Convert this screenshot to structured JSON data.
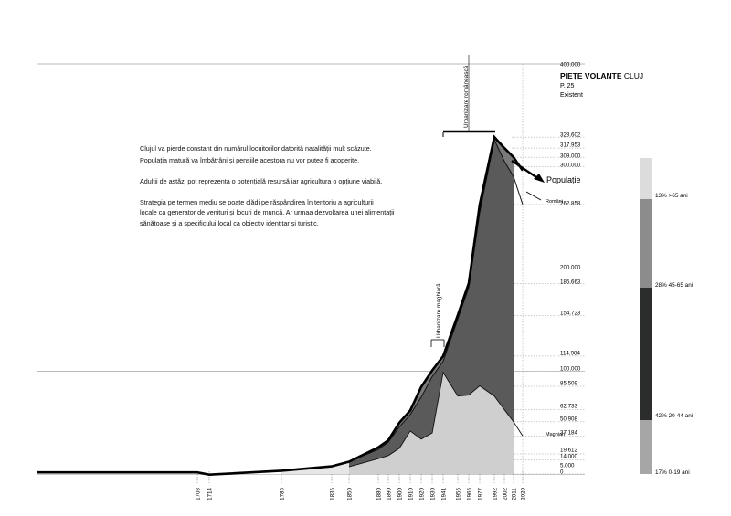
{
  "header": {
    "title_bold": "PIEȚE VOLANTE",
    "title_rest": " CLUJ",
    "page": "P. 25",
    "subtitle": "Existent"
  },
  "text_block": {
    "lines": [
      "Clujul va pierde constant din numărul locuitorilor datorită natalității mult scăzute.",
      "Populația matură va îmbătrâni și pensiile acestora nu vor putea fi acoperite.",
      "",
      "Adulții de astăzi pot reprezenta o potențială resursă iar agricultura o opțiune viabilă.",
      "",
      "Strategia pe termen mediu se poate clădi pe răspândirea în teritoriu a agriculturii",
      "locale ca generator de venituri și locuri de muncă. Ar urmaa dezvoltarea unei alimentații",
      "sănătoase și a specificului local ca obiectiv identitar și turistic."
    ]
  },
  "annotations": {
    "urbanizare_romaneasca": "Urbanizare românească",
    "urbanizare_maghiara": "Urbanizare maghiară"
  },
  "chart_data": {
    "type": "area",
    "x": [
      1703,
      1714,
      1785,
      1835,
      1850,
      1880,
      1890,
      1900,
      1910,
      1920,
      1930,
      1941,
      1956,
      1966,
      1977,
      1992,
      2002,
      2011,
      2020
    ],
    "x_tick_labels": [
      "1703",
      "1714",
      "1785",
      "1835",
      "1850",
      "1880",
      "1890",
      "1900",
      "1910",
      "1920",
      "1930",
      "1941",
      "1956",
      "1966",
      "1977",
      "1992",
      "2002",
      "2011",
      "2020"
    ],
    "y_tick_labels": [
      "400.000",
      "328.602",
      "317.953",
      "309.000",
      "300.000",
      "262.858",
      "200.000",
      "185.663",
      "154.723",
      "114.984",
      "100.000",
      "85.509",
      "62.733",
      "50.908",
      "37.184",
      "19.612",
      "14.000",
      "5.000",
      "0"
    ],
    "ylim": [
      0,
      400000
    ],
    "series": [
      {
        "name": "Populație",
        "color": "#000000",
        "points": [
          [
            1703,
            1600
          ],
          [
            1714,
            -600
          ],
          [
            1785,
            3200
          ],
          [
            1835,
            7500
          ],
          [
            1850,
            12000
          ],
          [
            1880,
            26000
          ],
          [
            1890,
            33000
          ],
          [
            1900,
            50000
          ],
          [
            1910,
            62000
          ],
          [
            1920,
            85000
          ],
          [
            1930,
            101000
          ],
          [
            1941,
            115000
          ],
          [
            1956,
            155000
          ],
          [
            1966,
            186000
          ],
          [
            1977,
            262858
          ],
          [
            1992,
            328602
          ],
          [
            2002,
            317953
          ],
          [
            2011,
            309000
          ],
          [
            2020,
            296000
          ]
        ]
      },
      {
        "name": "Români",
        "color": "#555555",
        "points": [
          [
            1850,
            12000
          ],
          [
            1880,
            24000
          ],
          [
            1890,
            31000
          ],
          [
            1900,
            46000
          ],
          [
            1910,
            58000
          ],
          [
            1920,
            75000
          ],
          [
            1930,
            95000
          ],
          [
            1941,
            110000
          ],
          [
            1956,
            151000
          ],
          [
            1966,
            182000
          ],
          [
            1977,
            255000
          ],
          [
            1992,
            326000
          ],
          [
            2002,
            305000
          ],
          [
            2011,
            290000
          ],
          [
            2020,
            262858
          ]
        ]
      },
      {
        "name": "Maghiari",
        "color": "#cccccc",
        "points": [
          [
            1850,
            7000
          ],
          [
            1880,
            15000
          ],
          [
            1890,
            18000
          ],
          [
            1900,
            25000
          ],
          [
            1910,
            42000
          ],
          [
            1920,
            34000
          ],
          [
            1930,
            40000
          ],
          [
            1941,
            99000
          ],
          [
            1956,
            76000
          ],
          [
            1966,
            77000
          ],
          [
            1977,
            86000
          ],
          [
            1992,
            76000
          ],
          [
            2002,
            62733
          ],
          [
            2011,
            50908
          ],
          [
            2020,
            37184
          ]
        ]
      }
    ],
    "age_groups": [
      {
        "label": "13% >65 ani",
        "percent": 13,
        "color": "#dcdcdc"
      },
      {
        "label": "28% 45-65 ani",
        "percent": 28,
        "color": "#8c8c8c"
      },
      {
        "label": "42% 20-44 ani",
        "percent": 42,
        "color": "#2b2d2d"
      },
      {
        "label": "17% 0-19 ani",
        "percent": 17,
        "color": "#a6a6a6"
      }
    ],
    "grid": true
  }
}
